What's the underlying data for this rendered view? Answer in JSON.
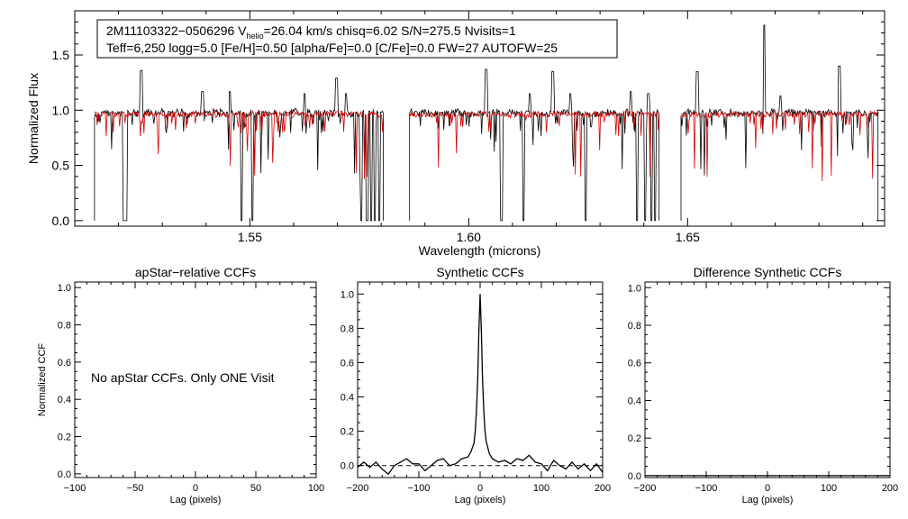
{
  "chart_data": [
    {
      "type": "line",
      "xlabel": "Wavelength (microns)",
      "ylabel": "Normalized Flux",
      "xlim": [
        1.51,
        1.695
      ],
      "ylim": [
        -0.05,
        1.9
      ],
      "xticks": [
        "1.55",
        "1.60",
        "1.65"
      ],
      "yticks": [
        "0.0",
        "0.5",
        "1.0",
        "1.5"
      ],
      "info_line1": {
        "star": "2M11103322−0506296",
        "v_prefix": "V",
        "v_sub": "helio",
        "v_rest": "=26.04 km/s  chisq=6.02  S/N=275.5  Nvisits=1"
      },
      "info_line2": "Teff=6,250 logg=5.0 [Fe/H]=0.50 [alpha/Fe]=0.0 [C/Fe]=0.0 FW=27 AUTOFW=25",
      "chips": [
        [
          1.5145,
          1.5805
        ],
        [
          1.5865,
          1.6435
        ],
        [
          1.6485,
          1.6935
        ]
      ],
      "series": [
        {
          "color": "#000000",
          "continuum": 1.0
        },
        {
          "color": "#d40000",
          "continuum": 0.99
        }
      ],
      "spikes": [
        {
          "x": 1.5252,
          "y": 1.36
        },
        {
          "x": 1.5392,
          "y": 1.17
        },
        {
          "x": 1.5455,
          "y": 1.17
        },
        {
          "x": 1.5625,
          "y": 1.15
        },
        {
          "x": 1.5698,
          "y": 1.29
        },
        {
          "x": 1.572,
          "y": 1.15
        },
        {
          "x": 1.604,
          "y": 1.37
        },
        {
          "x": 1.614,
          "y": 1.15
        },
        {
          "x": 1.6192,
          "y": 1.35
        },
        {
          "x": 1.6232,
          "y": 1.15
        },
        {
          "x": 1.637,
          "y": 1.17
        },
        {
          "x": 1.641,
          "y": 1.15
        },
        {
          "x": 1.6522,
          "y": 1.35
        },
        {
          "x": 1.6675,
          "y": 1.77
        },
        {
          "x": 1.6712,
          "y": 1.13
        },
        {
          "x": 1.6847,
          "y": 1.4
        }
      ],
      "gaps": [
        1.5212,
        1.5217,
        1.5482,
        1.5505,
        1.5755,
        1.5768,
        1.5778,
        1.5786,
        1.5795,
        1.6075,
        1.6125,
        1.6268,
        1.6385,
        1.6403,
        1.6418,
        1.6425
      ]
    },
    {
      "type": "line",
      "title": "apStar−relative CCFs",
      "xlabel": "Lag (pixels)",
      "ylabel": "Normalized CCF",
      "xlim": [
        -100,
        100
      ],
      "ylim": [
        -0.02,
        1.03
      ],
      "xticks": [
        -100,
        -50,
        0,
        50,
        100
      ],
      "yticks": [
        "0.0",
        "0.2",
        "0.4",
        "0.6",
        "0.8",
        "1.0"
      ],
      "annotation": "No apStar CCFs.  Only ONE Visit",
      "series": []
    },
    {
      "type": "line",
      "title": "Synthetic CCFs",
      "xlabel": "Lag (pixels)",
      "xlim": [
        -200,
        200
      ],
      "ylim": [
        -0.07,
        1.07
      ],
      "xticks": [
        -200,
        -100,
        0,
        100,
        200
      ],
      "yticks": [
        "0.0",
        "0.2",
        "0.4",
        "0.6",
        "0.8",
        "1.0"
      ],
      "series": [
        {
          "color": "#000000",
          "x": [
            -200,
            -190,
            -180,
            -170,
            -160,
            -150,
            -140,
            -130,
            -120,
            -110,
            -100,
            -90,
            -80,
            -70,
            -60,
            -50,
            -40,
            -30,
            -20,
            -15,
            -10,
            -8,
            -6,
            -4,
            -2,
            0,
            2,
            4,
            6,
            8,
            10,
            15,
            20,
            30,
            40,
            50,
            60,
            70,
            80,
            90,
            100,
            110,
            120,
            130,
            140,
            150,
            160,
            170,
            180,
            190,
            200
          ],
          "values": [
            -0.01,
            0.02,
            -0.01,
            0.02,
            -0.02,
            -0.05,
            0.0,
            0.02,
            0.04,
            0.01,
            0.01,
            -0.03,
            0.0,
            0.03,
            0.04,
            0.0,
            0.01,
            0.04,
            0.05,
            0.08,
            0.13,
            0.2,
            0.32,
            0.5,
            0.78,
            1.0,
            0.78,
            0.5,
            0.32,
            0.2,
            0.14,
            0.07,
            0.04,
            0.02,
            0.03,
            0.01,
            0.04,
            0.03,
            0.06,
            0.02,
            0.01,
            -0.03,
            0.03,
            0.0,
            -0.02,
            0.02,
            -0.02,
            0.01,
            -0.03,
            0.01,
            -0.04
          ]
        },
        {
          "color": "#000000",
          "dashed": true,
          "x": [
            -200,
            200
          ],
          "values": [
            0,
            0
          ]
        }
      ]
    },
    {
      "type": "line",
      "title": "Difference Synthetic CCFs",
      "xlabel": "Lag (pixels)",
      "xlim": [
        -200,
        200
      ],
      "ylim": [
        -0.01,
        1.03
      ],
      "xticks": [
        -200,
        -100,
        0,
        100,
        200
      ],
      "yticks": [
        "0.0",
        "0.2",
        "0.4",
        "0.6",
        "0.8",
        "1.0"
      ],
      "series": [
        {
          "color": "#000000",
          "x": [
            -200,
            200
          ],
          "values": [
            0,
            0
          ]
        }
      ]
    }
  ]
}
